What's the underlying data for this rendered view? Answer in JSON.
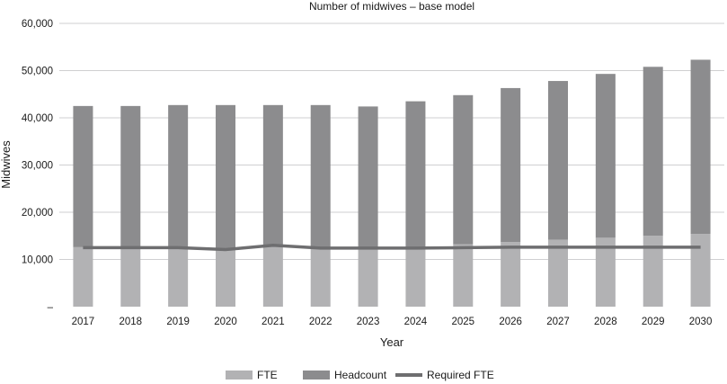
{
  "chart_data": {
    "type": "bar",
    "title": "Number of midwives – base model",
    "xlabel": "Year",
    "ylabel": "Midwives",
    "categories": [
      "2017",
      "2018",
      "2019",
      "2020",
      "2021",
      "2022",
      "2023",
      "2024",
      "2025",
      "2026",
      "2027",
      "2028",
      "2029",
      "2030"
    ],
    "ylim": [
      0,
      60000
    ],
    "yticks": [
      0,
      10000,
      20000,
      30000,
      40000,
      50000,
      60000
    ],
    "ytick_labels": [
      "–",
      "10,000",
      "20,000",
      "30,000",
      "40,000",
      "50,000",
      "60,000"
    ],
    "stacked": true,
    "grid": true,
    "legend_position": "bottom",
    "series": [
      {
        "name": "FTE",
        "kind": "bar",
        "color": "#b2b2b4",
        "values": [
          12600,
          12600,
          12500,
          12100,
          12800,
          12400,
          12300,
          12500,
          13200,
          13700,
          14200,
          14600,
          15000,
          15400
        ]
      },
      {
        "name": "Headcount",
        "kind": "bar",
        "color": "#8c8c8e",
        "values": [
          29900,
          29900,
          30200,
          30600,
          29900,
          30300,
          30100,
          31000,
          31600,
          32600,
          33600,
          34700,
          35800,
          36900
        ]
      },
      {
        "name": "Required FTE",
        "kind": "line",
        "color": "#6e6e70",
        "values": [
          12500,
          12500,
          12500,
          12100,
          13000,
          12400,
          12400,
          12400,
          12500,
          12600,
          12600,
          12600,
          12600,
          12600
        ]
      }
    ]
  }
}
